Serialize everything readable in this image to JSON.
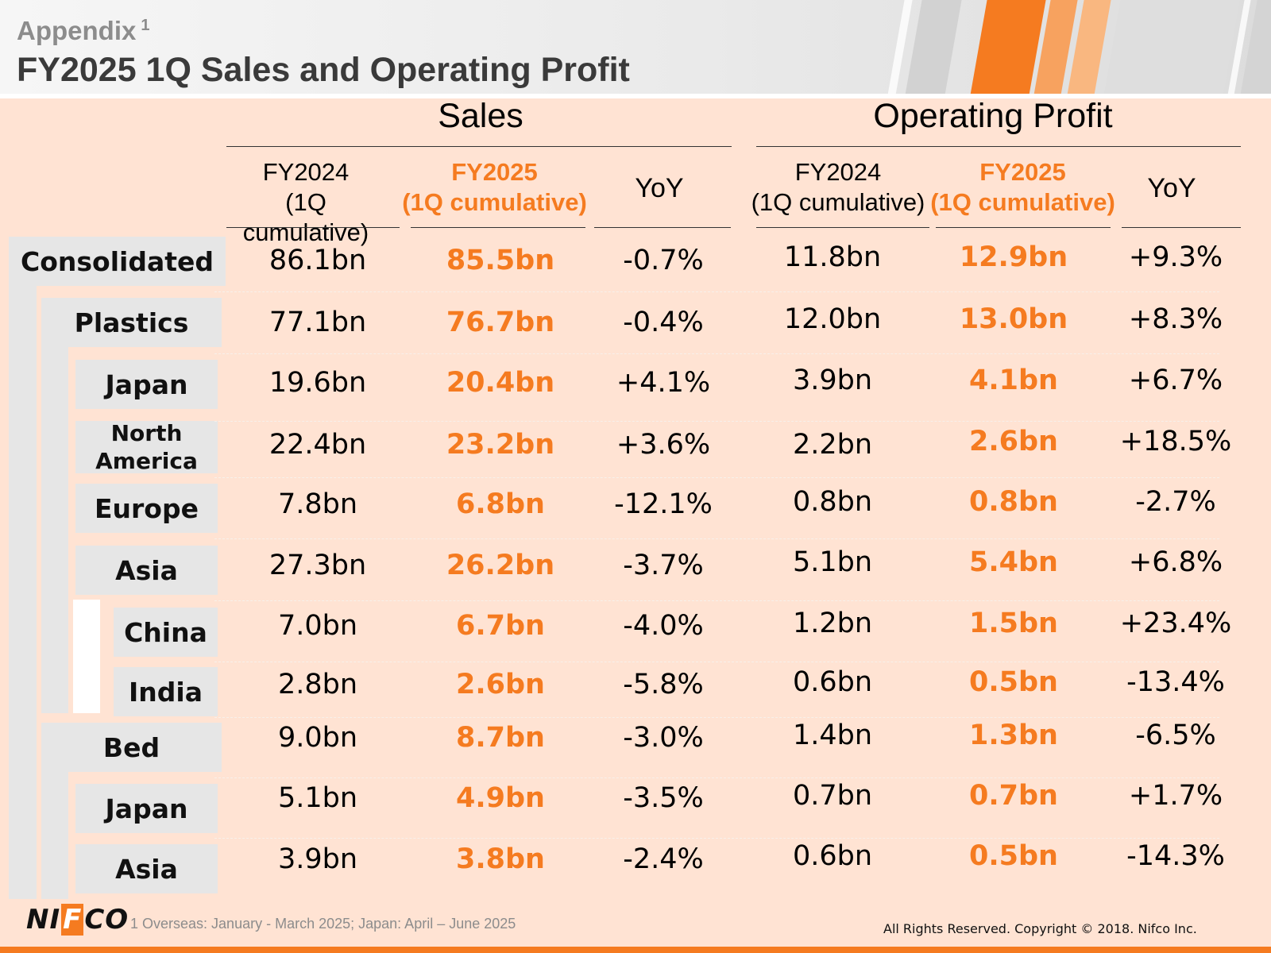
{
  "header": {
    "appendix_label": "Appendix",
    "appendix_sup": "1",
    "title": "FY2025 1Q Sales and Operating Profit"
  },
  "groups": {
    "sales": "Sales",
    "operating_profit": "Operating Profit"
  },
  "columns": {
    "prev_year": "FY2024",
    "prev_period": "(1Q cumulative)",
    "curr_year": "FY2025",
    "curr_period": "(1Q cumulative)",
    "yoy": "YoY"
  },
  "rows": [
    {
      "label": "Consolidated",
      "sales_prev": "86.1bn",
      "sales_curr": "85.5bn",
      "sales_yoy": "-0.7%",
      "op_prev": "11.8bn",
      "op_curr": "12.9bn",
      "op_yoy": "+9.3%"
    },
    {
      "label": "Plastics",
      "sales_prev": "77.1bn",
      "sales_curr": "76.7bn",
      "sales_yoy": "-0.4%",
      "op_prev": "12.0bn",
      "op_curr": "13.0bn",
      "op_yoy": "+8.3%"
    },
    {
      "label": "Japan",
      "sales_prev": "19.6bn",
      "sales_curr": "20.4bn",
      "sales_yoy": "+4.1%",
      "op_prev": "3.9bn",
      "op_curr": "4.1bn",
      "op_yoy": "+6.7%"
    },
    {
      "label_line1": "North",
      "label_line2": "America",
      "sales_prev": "22.4bn",
      "sales_curr": "23.2bn",
      "sales_yoy": "+3.6%",
      "op_prev": "2.2bn",
      "op_curr": "2.6bn",
      "op_yoy": "+18.5%"
    },
    {
      "label": "Europe",
      "sales_prev": "7.8bn",
      "sales_curr": "6.8bn",
      "sales_yoy": "-12.1%",
      "op_prev": "0.8bn",
      "op_curr": "0.8bn",
      "op_yoy": "-2.7%"
    },
    {
      "label": "Asia",
      "sales_prev": "27.3bn",
      "sales_curr": "26.2bn",
      "sales_yoy": "-3.7%",
      "op_prev": "5.1bn",
      "op_curr": "5.4bn",
      "op_yoy": "+6.8%"
    },
    {
      "label": "China",
      "sales_prev": "7.0bn",
      "sales_curr": "6.7bn",
      "sales_yoy": "-4.0%",
      "op_prev": "1.2bn",
      "op_curr": "1.5bn",
      "op_yoy": "+23.4%"
    },
    {
      "label": "India",
      "sales_prev": "2.8bn",
      "sales_curr": "2.6bn",
      "sales_yoy": "-5.8%",
      "op_prev": "0.6bn",
      "op_curr": "0.5bn",
      "op_yoy": "-13.4%"
    },
    {
      "label": "Bed",
      "sales_prev": "9.0bn",
      "sales_curr": "8.7bn",
      "sales_yoy": "-3.0%",
      "op_prev": "1.4bn",
      "op_curr": "1.3bn",
      "op_yoy": "-6.5%"
    },
    {
      "label": "Japan",
      "sales_prev": "5.1bn",
      "sales_curr": "4.9bn",
      "sales_yoy": "-3.5%",
      "op_prev": "0.7bn",
      "op_curr": "0.7bn",
      "op_yoy": "+1.7%"
    },
    {
      "label": "Asia",
      "sales_prev": "3.9bn",
      "sales_curr": "3.8bn",
      "sales_yoy": "-2.4%",
      "op_prev": "0.6bn",
      "op_curr": "0.5bn",
      "op_yoy": "-14.3%"
    }
  ],
  "footer": {
    "logo_pre": "NI",
    "logo_f": "F",
    "logo_post": "CO",
    "footnote": "1 Overseas: January - March 2025; Japan: April – June 2025",
    "copyright": "All Rights Reserved. Copyright © 2018. Nifco Inc."
  },
  "colors": {
    "accent": "#f57b20",
    "background": "#ffe3d3",
    "label_bg": "#e6e6e6"
  }
}
